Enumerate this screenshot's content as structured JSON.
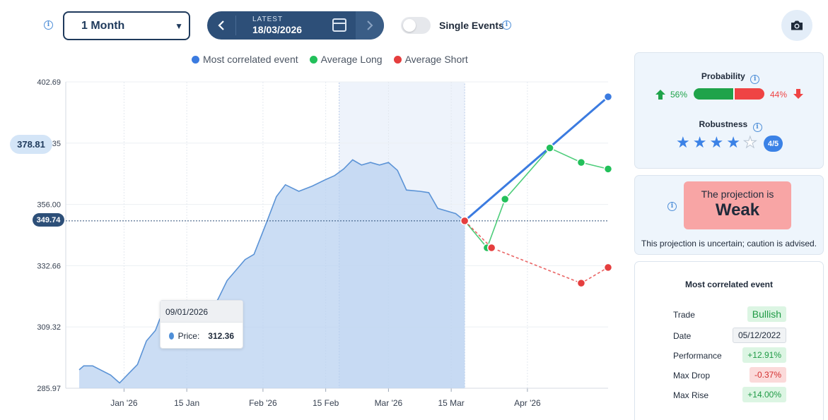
{
  "controls": {
    "period_selected": "1 Month",
    "date_label": "LATEST",
    "date_value": "18/03/2026",
    "toggle_label": "Single Events",
    "toggle_on": false
  },
  "legend": [
    {
      "label": "Most correlated event",
      "color": "#3b7be0"
    },
    {
      "label": "Average Long",
      "color": "#22c05a"
    },
    {
      "label": "Average Short",
      "color": "#e53e3e"
    }
  ],
  "badges": {
    "price_tag": "378.81",
    "current_price": "349.74"
  },
  "tooltip": {
    "date": "09/01/2026",
    "label": "Price:",
    "value": "312.36"
  },
  "chart_data": {
    "type": "line",
    "y_ticks": [
      "402.69",
      "356.00",
      "332.66",
      "309.32",
      "285.97"
    ],
    "y_tick_partial": "35",
    "x_ticks": [
      "Jan '26",
      "15 Jan",
      "Feb '26",
      "15 Feb",
      "Mar '26",
      "15 Mar",
      "Apr '26"
    ],
    "ylim": [
      285.97,
      402.69
    ],
    "reference_line": 349.74,
    "highlight_range": [
      "2026-02-18",
      "2026-03-18"
    ],
    "series": [
      {
        "name": "Price",
        "color": "#4f8fd8",
        "x": [
          "2025-12-22",
          "2025-12-23",
          "2025-12-25",
          "2025-12-29",
          "2025-12-31",
          "2026-01-02",
          "2026-01-04",
          "2026-01-06",
          "2026-01-08",
          "2026-01-09",
          "2026-01-11",
          "2026-01-13",
          "2026-01-16",
          "2026-01-19",
          "2026-01-22",
          "2026-01-24",
          "2026-01-26",
          "2026-01-28",
          "2026-01-30",
          "2026-02-02",
          "2026-02-04",
          "2026-02-06",
          "2026-02-09",
          "2026-02-12",
          "2026-02-15",
          "2026-02-17",
          "2026-02-19",
          "2026-02-21",
          "2026-02-23",
          "2026-02-25",
          "2026-02-27",
          "2026-03-01",
          "2026-03-03",
          "2026-03-05",
          "2026-03-08",
          "2026-03-10",
          "2026-03-12",
          "2026-03-14",
          "2026-03-16",
          "2026-03-18"
        ],
        "y": [
          293.0,
          294.5,
          294.5,
          291.0,
          288.0,
          291.5,
          295.0,
          304.0,
          308.0,
          312.4,
          312.0,
          311.0,
          310.0,
          312.0,
          320.0,
          327.0,
          331.0,
          335.0,
          337.0,
          350.0,
          359.0,
          363.5,
          361.0,
          363.0,
          365.5,
          367.0,
          369.5,
          373.0,
          371.0,
          372.0,
          371.0,
          372.0,
          369.0,
          361.5,
          361.0,
          360.5,
          354.5,
          353.5,
          352.5,
          349.74
        ]
      }
    ],
    "projections": [
      {
        "name": "Most correlated event",
        "color": "#3b7be0",
        "dash": false,
        "x": [
          "2026-03-18",
          "2026-04-19"
        ],
        "y": [
          349.74,
          397.0
        ]
      },
      {
        "name": "Average Long",
        "color": "#22c05a",
        "dash": false,
        "x": [
          "2026-03-18",
          "2026-03-23",
          "2026-03-27",
          "2026-04-06",
          "2026-04-13",
          "2026-04-19"
        ],
        "y": [
          349.74,
          339.5,
          358.0,
          377.5,
          372.0,
          369.5
        ]
      },
      {
        "name": "Average Short",
        "color": "#e53e3e",
        "dash": true,
        "x": [
          "2026-03-18",
          "2026-03-24",
          "2026-04-13",
          "2026-04-19"
        ],
        "y": [
          349.74,
          339.5,
          326.0,
          332.0
        ]
      }
    ]
  },
  "probability": {
    "title": "Probability",
    "long_pct": "56%",
    "short_pct": "44%",
    "long_value": 56,
    "short_value": 44
  },
  "robustness": {
    "title": "Robustness",
    "score": "4/5",
    "stars_filled": 4,
    "stars_total": 5
  },
  "projection_strength": {
    "line1": "The projection is",
    "line2": "Weak",
    "note": "This projection is uncertain; caution is advised."
  },
  "most_correlated": {
    "title": "Most correlated event",
    "rows": [
      {
        "key": "Trade",
        "value": "Bullish",
        "style": "green"
      },
      {
        "key": "Date",
        "value": "05/12/2022",
        "style": "plain"
      },
      {
        "key": "Performance",
        "value": "+12.91%",
        "style": "green"
      },
      {
        "key": "Max Drop",
        "value": "-0.37%",
        "style": "red"
      },
      {
        "key": "Max Rise",
        "value": "+14.00%",
        "style": "green"
      }
    ]
  }
}
